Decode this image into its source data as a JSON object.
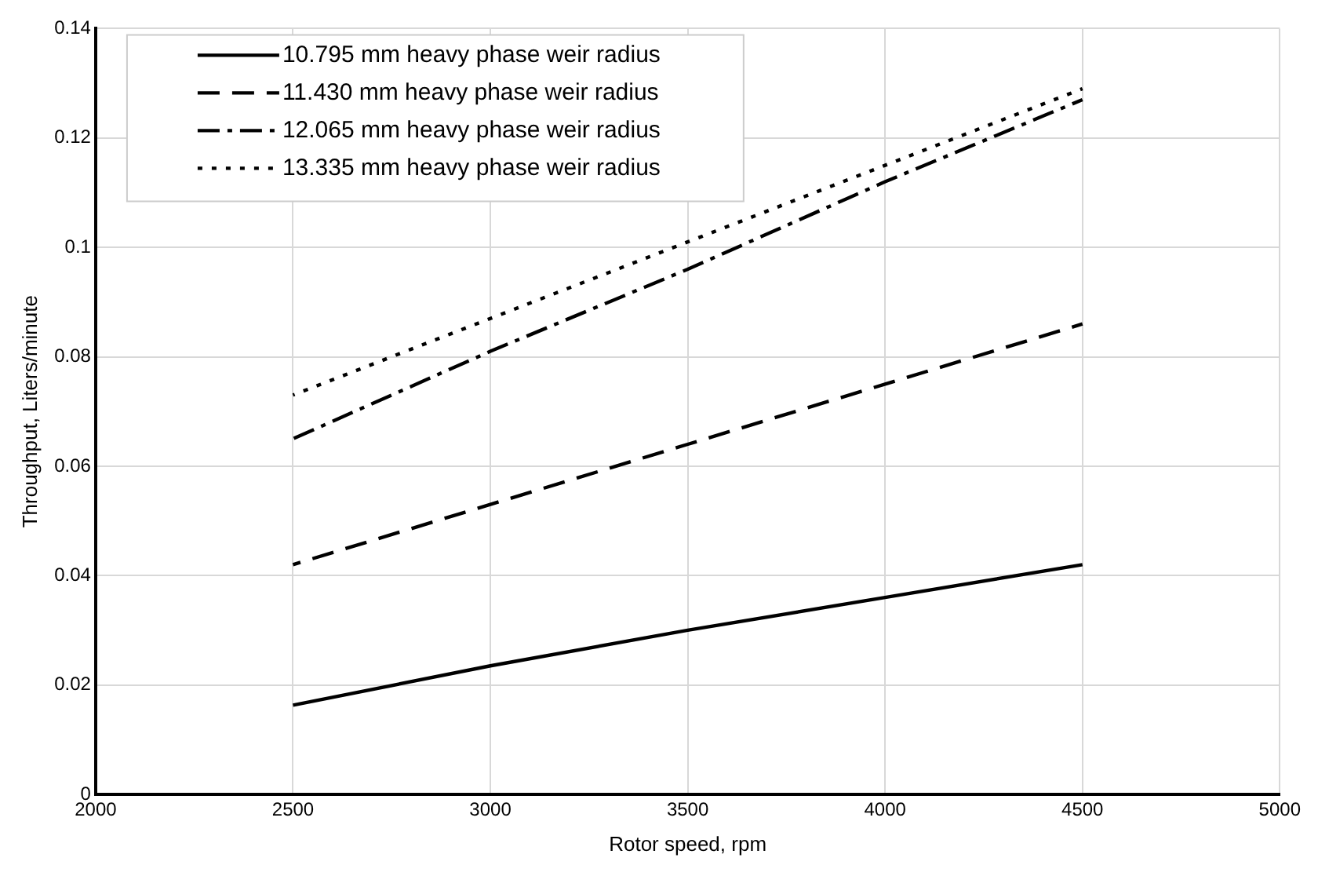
{
  "chart_data": {
    "type": "line",
    "xlabel": "Rotor speed, rpm",
    "ylabel": "Throughput, Liters/minute",
    "x": [
      2500,
      3000,
      3500,
      4000,
      4500
    ],
    "series": [
      {
        "name": "10.795 mm heavy phase weir radius",
        "color": "#000000",
        "line_style": "solid",
        "values": [
          0.0163,
          0.0235,
          0.03,
          0.036,
          0.042
        ]
      },
      {
        "name": "11.430 mm heavy phase weir radius",
        "color": "#000000",
        "line_style": "dashed",
        "values": [
          0.042,
          0.053,
          0.064,
          0.075,
          0.086
        ]
      },
      {
        "name": "12.065 mm heavy phase weir radius",
        "color": "#000000",
        "line_style": "dashdot",
        "values": [
          0.065,
          0.081,
          0.096,
          0.112,
          0.127
        ]
      },
      {
        "name": "13.335 mm heavy phase weir radius",
        "color": "#000000",
        "line_style": "dotted",
        "values": [
          0.073,
          0.087,
          0.101,
          0.115,
          0.129
        ]
      }
    ],
    "xlim": [
      2000,
      5000
    ],
    "xticks": [
      2000,
      2500,
      3000,
      3500,
      4000,
      4500,
      5000
    ],
    "ylim": [
      0,
      0.14
    ],
    "yticks": [
      0,
      0.02,
      0.04,
      0.06,
      0.08,
      0.1,
      0.12,
      0.14
    ],
    "grid": true,
    "legend": "top left",
    "marker": "none"
  }
}
